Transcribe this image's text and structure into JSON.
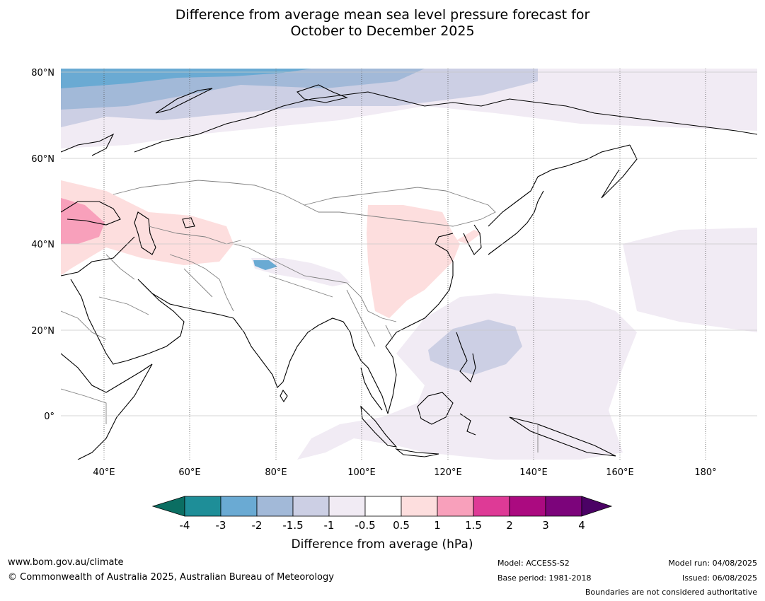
{
  "title_line1": "Difference from average mean sea level pressure forecast for",
  "title_line2": "October to December 2025",
  "map": {
    "lat_ticks": [
      "80°N",
      "60°N",
      "40°N",
      "20°N",
      "0°"
    ],
    "lon_ticks": [
      "40°E",
      "60°E",
      "80°E",
      "100°E",
      "120°E",
      "140°E",
      "160°E",
      "180°"
    ],
    "colors": {
      "land_outline": "#000000",
      "border": "#808080",
      "grid": "#c8c8c8"
    }
  },
  "colorbar": {
    "label": "Difference from average (hPa)",
    "ticks": [
      "-4",
      "-3",
      "-2",
      "-1.5",
      "-1",
      "-0.5",
      "0.5",
      "1",
      "1.5",
      "2",
      "3",
      "4"
    ],
    "colors": [
      "#0b6e62",
      "#1e8e98",
      "#6aaad3",
      "#a2b9d8",
      "#cccfe4",
      "#f1ebf4",
      "#ffffff",
      "#fddede",
      "#f8a0bb",
      "#de3a96",
      "#ab0a80",
      "#7c047b",
      "#4b0265"
    ]
  },
  "footer": {
    "website": "www.bom.gov.au/climate",
    "copyright": "© Commonwealth of Australia 2025, Australian Bureau of Meteorology",
    "model": "Model: ACCESS-S2",
    "base_period": "Base period: 1981-2018",
    "model_run": "Model run: 04/08/2025",
    "issued": "Issued: 06/08/2025",
    "disclaimer": "Boundaries are not considered authoritative"
  }
}
